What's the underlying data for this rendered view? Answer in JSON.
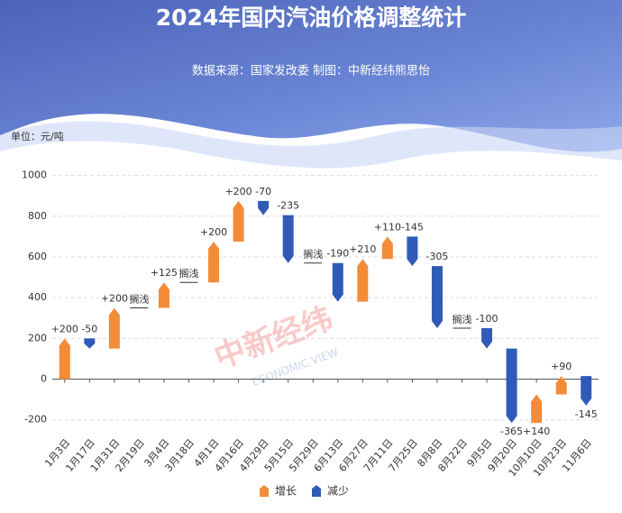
{
  "chart_data": {
    "type": "waterfall",
    "title": "2024年国内汽油价格调整统计",
    "subtitle": "数据来源：国家发改委 制图：中新经纬熊思怡",
    "unit_label": "单位：元/吨",
    "watermark": [
      "中新经纬",
      "ECONOMIC VIEW"
    ],
    "categories": [
      "1月3日",
      "1月17日",
      "1月31日",
      "2月19日",
      "3月4日",
      "3月18日",
      "4月1日",
      "4月16日",
      "4月29日",
      "5月15日",
      "5月29日",
      "6月13日",
      "6月27日",
      "7月11日",
      "7月25日",
      "8月8日",
      "8月22日",
      "9月5日",
      "9月20日",
      "10月10日",
      "10月23日",
      "11月6日"
    ],
    "values": [
      200,
      -50,
      200,
      0,
      125,
      0,
      200,
      200,
      -70,
      -235,
      0,
      -190,
      210,
      110,
      -145,
      -305,
      0,
      -100,
      -365,
      140,
      90,
      -145
    ],
    "value_labels": [
      "+200",
      "-50",
      "+200",
      "搁浅",
      "+125",
      "搁浅",
      "+200",
      "+200",
      "-70",
      "-235",
      "搁浅",
      "-190",
      "+210",
      "+110",
      "-145",
      "-305",
      "搁浅",
      "-100",
      "-365",
      "+140",
      "+90",
      "-145"
    ],
    "legend": [
      {
        "name": "增长",
        "color": "#f28c38"
      },
      {
        "name": "减少",
        "color": "#2f5bb7"
      }
    ],
    "ylim": [
      -250,
      1100
    ],
    "yticks": [
      -200,
      0,
      200,
      400,
      600,
      800,
      1000
    ],
    "grid": true
  }
}
